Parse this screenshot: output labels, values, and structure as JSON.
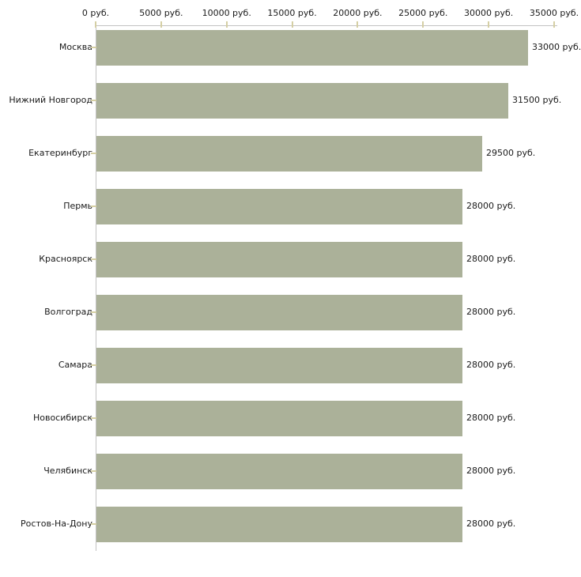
{
  "chart_data": {
    "type": "bar",
    "orientation": "horizontal",
    "title": "",
    "categories": [
      "Москва",
      "Нижний Новгород",
      "Екатеринбург",
      "Пермь",
      "Красноярск",
      "Волгоград",
      "Самара",
      "Новосибирск",
      "Челябинск",
      "Ростов-На-Дону"
    ],
    "values": [
      33000,
      31500,
      29500,
      28000,
      28000,
      28000,
      28000,
      28000,
      28000,
      28000
    ],
    "value_labels": [
      "33000 руб.",
      "31500 руб.",
      "29500 руб.",
      "28000 руб.",
      "28000 руб.",
      "28000 руб.",
      "28000 руб.",
      "28000 руб.",
      "28000 руб.",
      "28000 руб."
    ],
    "unit": "руб.",
    "x_axis": {
      "position": "top",
      "min": 0,
      "max": 35000,
      "tick_step": 5000,
      "tick_values": [
        0,
        5000,
        10000,
        15000,
        20000,
        25000,
        30000,
        35000
      ],
      "tick_labels": [
        "0 руб.",
        "5000 руб.",
        "10000 руб.",
        "15000 руб.",
        "20000 руб.",
        "25000 руб.",
        "30000 руб.",
        "35000 руб."
      ]
    },
    "grid": false,
    "legend": "none",
    "colors": {
      "bar": "#abb199",
      "axis_line": "#c3c3c3",
      "tick": "#d5cfa4",
      "text": "#1a1a1a",
      "background": "#ffffff"
    }
  }
}
